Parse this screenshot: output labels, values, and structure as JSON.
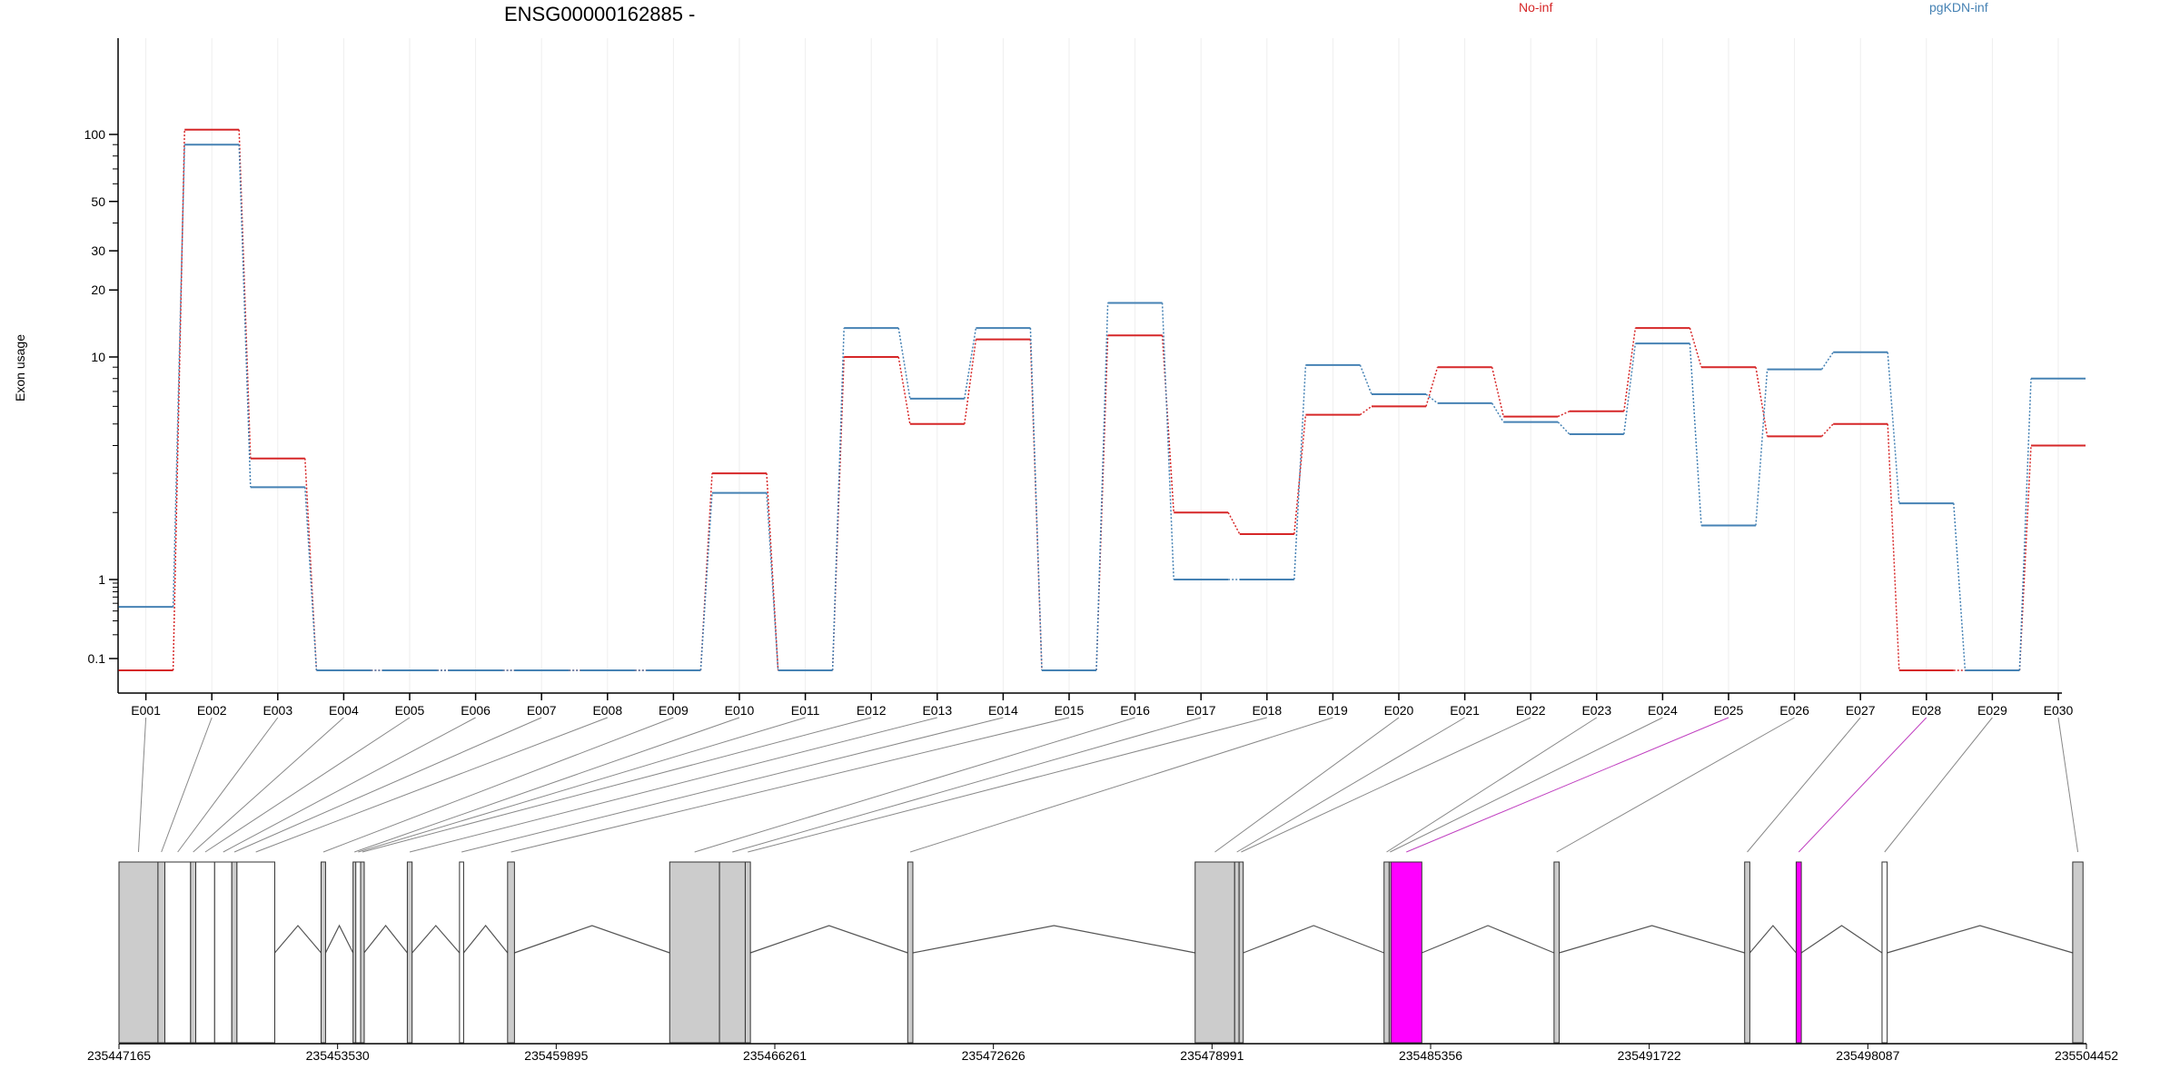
{
  "chart_data": {
    "type": "line",
    "title": "ENSG00000162885 -",
    "ylabel": "Exon usage",
    "y_scale": "log",
    "y_ticks": [
      0.1,
      1,
      10,
      20,
      30,
      50,
      100
    ],
    "categories": [
      "E001",
      "E002",
      "E003",
      "E004",
      "E005",
      "E006",
      "E007",
      "E008",
      "E009",
      "E010",
      "E011",
      "E012",
      "E013",
      "E014",
      "E015",
      "E016",
      "E017",
      "E018",
      "E019",
      "E020",
      "E021",
      "E022",
      "E023",
      "E024",
      "E025",
      "E026",
      "E027",
      "E028",
      "E029",
      "E030"
    ],
    "series": [
      {
        "name": "No-inf",
        "color": "#d62728",
        "values": [
          0.07,
          105,
          3.5,
          0.07,
          0.07,
          0.07,
          0.07,
          0.07,
          0.07,
          3.0,
          0.07,
          10,
          5.0,
          12,
          0.07,
          12.5,
          2.0,
          1.6,
          5.5,
          6.0,
          9.0,
          5.4,
          5.7,
          13.5,
          9.0,
          4.4,
          5.0,
          0.07,
          0.07,
          4.0
        ]
      },
      {
        "name": "pgKDN-inf",
        "color": "#4682b4",
        "values": [
          0.45,
          90,
          2.6,
          0.07,
          0.07,
          0.07,
          0.07,
          0.07,
          0.07,
          2.45,
          0.07,
          13.5,
          6.5,
          13.5,
          0.07,
          17.5,
          1.0,
          1.0,
          9.2,
          6.8,
          6.2,
          5.1,
          4.5,
          11.5,
          1.75,
          8.8,
          10.5,
          2.2,
          0.07,
          8.0
        ]
      }
    ],
    "gene_axis": {
      "start": 235447165,
      "end": 235504452,
      "tick_labels": [
        "235447165",
        "235453530",
        "235459895",
        "235466261",
        "235472626",
        "235478991",
        "235485356",
        "235491722",
        "235498087",
        "235504452"
      ]
    },
    "exon_mapping": [
      {
        "id": "E001",
        "start": 235447165,
        "end": 235448300,
        "fill": "#cccccc"
      },
      {
        "id": "E002",
        "start": 235448300,
        "end": 235448500,
        "fill": "#cccccc"
      },
      {
        "id": "E003",
        "start": 235448500,
        "end": 235449250,
        "fill": "#ffffff"
      },
      {
        "id": "E004",
        "start": 235449250,
        "end": 235449400,
        "fill": "#cccccc"
      },
      {
        "id": "E005",
        "start": 235449400,
        "end": 235449950,
        "fill": "#ffffff"
      },
      {
        "id": "E006",
        "start": 235449950,
        "end": 235450450,
        "fill": "#ffffff"
      },
      {
        "id": "E007",
        "start": 235450450,
        "end": 235450600,
        "fill": "#cccccc"
      },
      {
        "id": "E008",
        "start": 235450600,
        "end": 235451700,
        "fill": "#ffffff"
      },
      {
        "id": "E009",
        "start": 235453050,
        "end": 235453180,
        "fill": "#cccccc"
      },
      {
        "id": "E010",
        "start": 235453980,
        "end": 235454060,
        "fill": "#cccccc"
      },
      {
        "id": "E011",
        "start": 235454060,
        "end": 235454200,
        "fill": "#ffffff"
      },
      {
        "id": "E012",
        "start": 235454200,
        "end": 235454300,
        "fill": "#cccccc"
      },
      {
        "id": "E013",
        "start": 235455560,
        "end": 235455700,
        "fill": "#cccccc"
      },
      {
        "id": "E014",
        "start": 235457080,
        "end": 235457200,
        "fill": "#ffffff"
      },
      {
        "id": "E015",
        "start": 235458480,
        "end": 235458680,
        "fill": "#cccccc"
      },
      {
        "id": "E016",
        "start": 235463200,
        "end": 235464650,
        "fill": "#cccccc"
      },
      {
        "id": "E017",
        "start": 235464650,
        "end": 235465400,
        "fill": "#cccccc"
      },
      {
        "id": "E018",
        "start": 235465400,
        "end": 235465550,
        "fill": "#cccccc"
      },
      {
        "id": "E019",
        "start": 235470130,
        "end": 235470280,
        "fill": "#cccccc"
      },
      {
        "id": "E020",
        "start": 235478500,
        "end": 235479650,
        "fill": "#cccccc"
      },
      {
        "id": "E021",
        "start": 235479650,
        "end": 235479780,
        "fill": "#cccccc"
      },
      {
        "id": "E022",
        "start": 235479780,
        "end": 235479900,
        "fill": "#cccccc"
      },
      {
        "id": "E023",
        "start": 235484000,
        "end": 235484150,
        "fill": "#cccccc"
      },
      {
        "id": "E024",
        "start": 235484150,
        "end": 235484200,
        "fill": "#cccccc"
      },
      {
        "id": "E025",
        "start": 235484200,
        "end": 235485100,
        "fill": "#ff00ff"
      },
      {
        "id": "E026",
        "start": 235488950,
        "end": 235489100,
        "fill": "#cccccc"
      },
      {
        "id": "E027",
        "start": 235494500,
        "end": 235494650,
        "fill": "#cccccc"
      },
      {
        "id": "E028",
        "start": 235496000,
        "end": 235496150,
        "fill": "#ff00ff"
      },
      {
        "id": "E029",
        "start": 235498500,
        "end": 235498650,
        "fill": "#ffffff"
      },
      {
        "id": "E030",
        "start": 235504052,
        "end": 235504352,
        "fill": "#cccccc"
      }
    ]
  }
}
